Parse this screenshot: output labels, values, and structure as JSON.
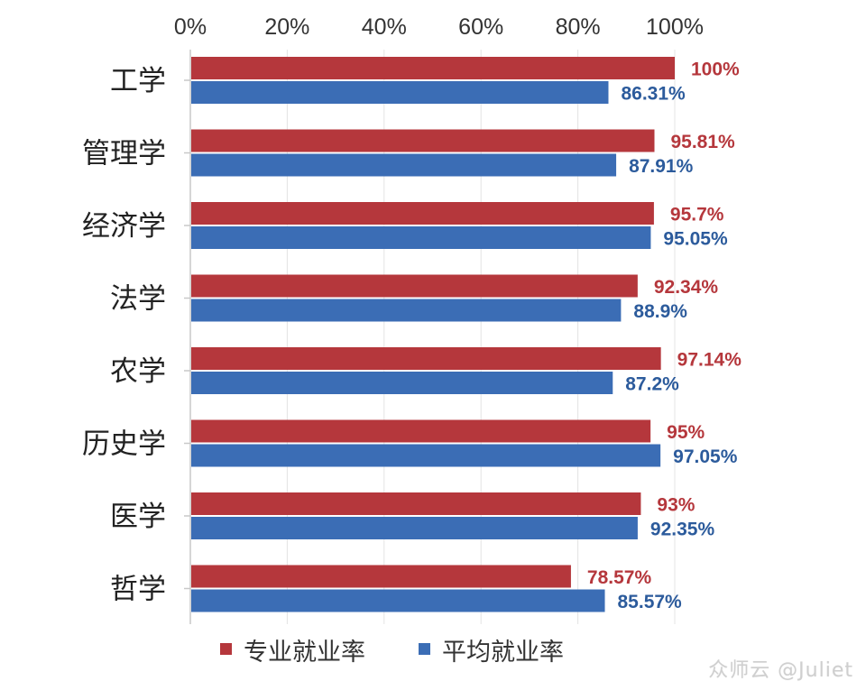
{
  "chart_data": {
    "type": "bar",
    "orientation": "horizontal",
    "categories": [
      "工学",
      "管理学",
      "经济学",
      "法学",
      "农学",
      "历史学",
      "医学",
      "哲学"
    ],
    "series": [
      {
        "name": "专业就业率",
        "color": "#b5373c",
        "label_color": "#b5373c",
        "values": [
          100,
          95.81,
          95.7,
          92.34,
          97.14,
          95,
          93,
          78.57
        ],
        "labels": [
          "100%",
          "95.81%",
          "95.7%",
          "92.34%",
          "97.14%",
          "95%",
          "93%",
          "78.57%"
        ]
      },
      {
        "name": "平均就业率",
        "color": "#3b6db5",
        "label_color": "#2c5b9c",
        "values": [
          86.31,
          87.91,
          95.05,
          88.9,
          87.2,
          97.05,
          92.35,
          85.57
        ],
        "labels": [
          "86.31%",
          "87.91%",
          "95.05%",
          "88.9%",
          "87.2%",
          "97.05%",
          "92.35%",
          "85.57%"
        ]
      }
    ],
    "xlim": [
      0,
      100
    ],
    "x_ticks": [
      "0%",
      "20%",
      "40%",
      "60%",
      "80%",
      "100%"
    ],
    "x_axis_position": "top",
    "grid": true,
    "legend_position": "bottom"
  },
  "watermark": "众师云 @Juliet"
}
